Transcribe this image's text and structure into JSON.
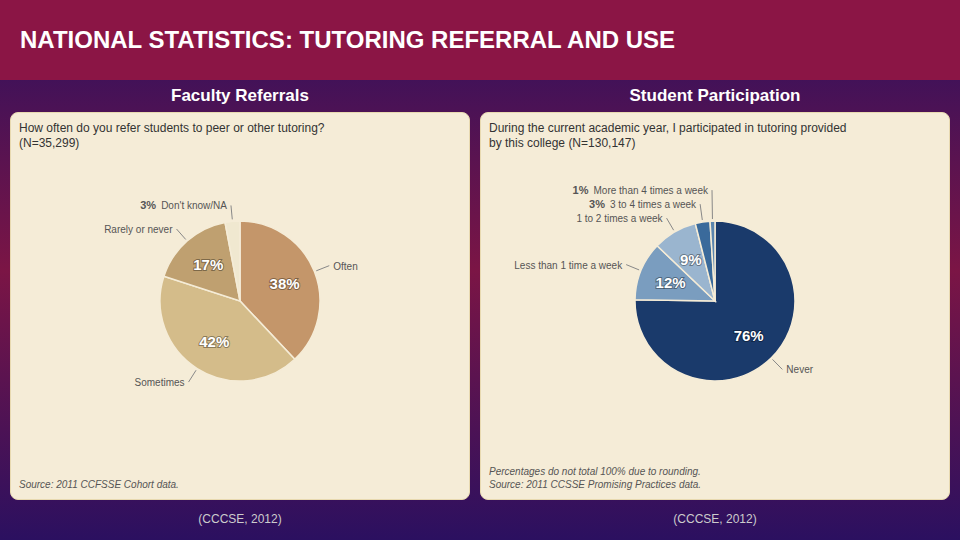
{
  "title": "NATIONAL STATISTICS: TUTORING REFERRAL AND USE",
  "chart_data": [
    {
      "type": "pie",
      "title": "Faculty Referrals",
      "subtitle": [
        "How often do you refer students to peer or other tutoring?",
        "(N=35,299)"
      ],
      "categories": [
        "Often",
        "Sometimes",
        "Rarely or never",
        "Don't know/NA"
      ],
      "values": [
        38,
        42,
        17,
        3
      ],
      "value_labels": [
        "38%",
        "42%",
        "17%",
        "3%"
      ],
      "colors": [
        "#C4966A",
        "#D4BC8A",
        "#BFA070",
        "#F0E8D0"
      ],
      "data_labels": true,
      "annotations": [
        "Source: 2011 CCFSSE Cohort data.",
        "(CCCSE, 2012)"
      ]
    },
    {
      "type": "pie",
      "title": "Student Participation",
      "subtitle": [
        "During the current academic year, I participated in tutoring provided",
        "by this college (N=130,147)"
      ],
      "categories": [
        "Never",
        "Less than 1 time a week",
        "1 to 2 times a week",
        "3 to 4 times a week",
        "More than 4 times a week"
      ],
      "values": [
        76,
        12,
        9,
        3,
        1
      ],
      "value_labels": [
        "76%",
        "12%",
        "9%",
        "3%",
        "1%"
      ],
      "colors": [
        "#1A3A6B",
        "#7A9DBF",
        "#9AB5CF",
        "#3A6A9B",
        "#5A85AF"
      ],
      "data_labels": true,
      "annotations": [
        "Percentages do not total 100% due to rounding.",
        "Source: 2011 CCSSE Promising Practices data.",
        "(CCCSE, 2012)"
      ]
    }
  ]
}
